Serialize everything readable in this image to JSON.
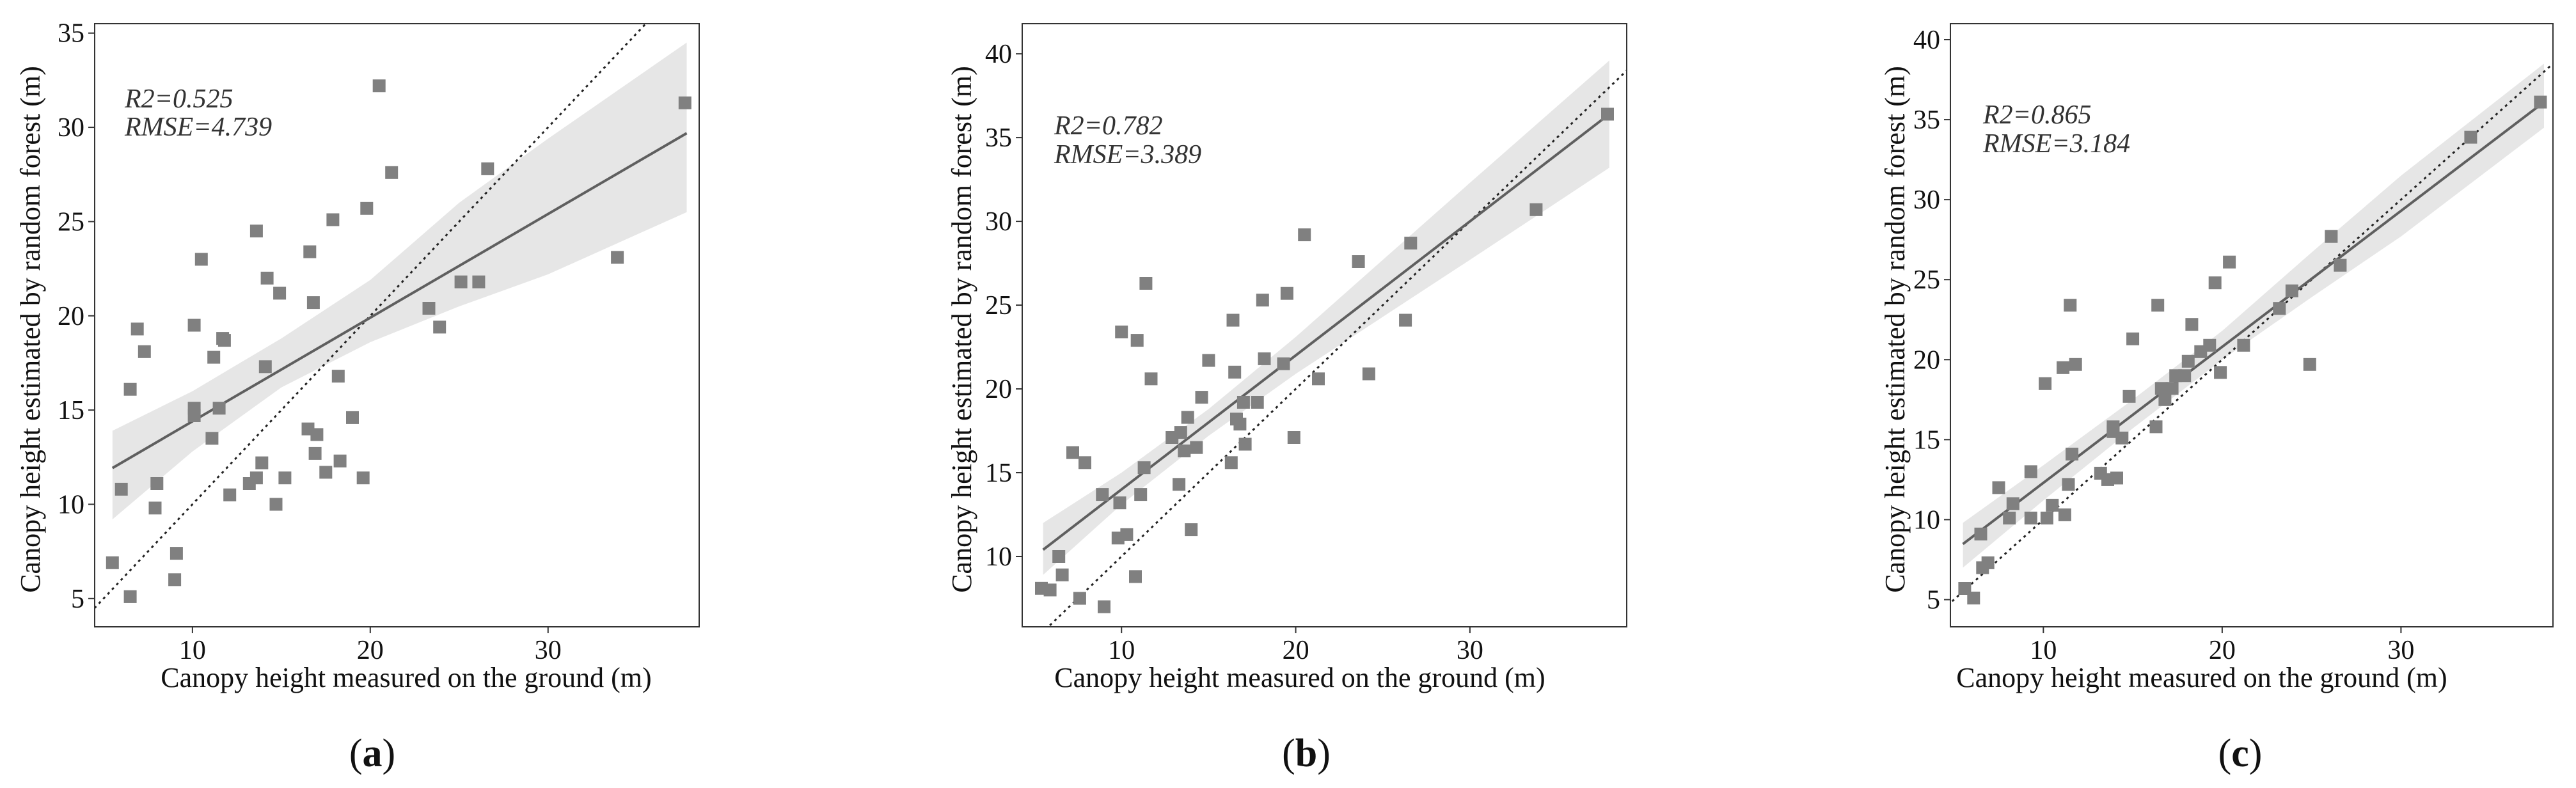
{
  "colors": {
    "point": "#808080",
    "fit_line": "#5f5f5f",
    "band": "#e6e6e6",
    "identity_line": "#222222",
    "axis": "#333333"
  },
  "chart_data": [
    {
      "type": "scatter",
      "panel_label": "(a)",
      "title": "",
      "xlabel": "Canopy height measured on the ground (m)",
      "ylabel": "Canopy height estimated by random forest (m)",
      "xlim": [
        4.5,
        38.5
      ],
      "ylim": [
        3.5,
        35.5
      ],
      "xticks": [
        10,
        20,
        30
      ],
      "yticks": [
        5,
        10,
        15,
        20,
        25,
        30,
        35
      ],
      "stats": [
        "R2=0.525",
        "RMSE=4.739"
      ],
      "fit": {
        "intercept": 8.9,
        "slope": 0.55
      },
      "band": [
        {
          "x": 5.5,
          "lo": 9.2,
          "hi": 13.9
        },
        {
          "x": 10,
          "lo": 12.8,
          "hi": 16.0
        },
        {
          "x": 15,
          "lo": 16.2,
          "hi": 18.8
        },
        {
          "x": 20,
          "lo": 18.6,
          "hi": 21.9
        },
        {
          "x": 25,
          "lo": 20.5,
          "hi": 26.0
        },
        {
          "x": 30,
          "lo": 22.2,
          "hi": 29.4
        },
        {
          "x": 37.8,
          "lo": 25.5,
          "hi": 34.5
        }
      ],
      "points": [
        {
          "x": 5.5,
          "y": 6.9
        },
        {
          "x": 6.0,
          "y": 10.8
        },
        {
          "x": 6.5,
          "y": 16.1
        },
        {
          "x": 6.9,
          "y": 19.3
        },
        {
          "x": 6.5,
          "y": 5.1
        },
        {
          "x": 7.3,
          "y": 18.1
        },
        {
          "x": 7.9,
          "y": 9.8
        },
        {
          "x": 8.0,
          "y": 11.1
        },
        {
          "x": 9.1,
          "y": 7.4
        },
        {
          "x": 9.0,
          "y": 6.0
        },
        {
          "x": 10.1,
          "y": 19.5
        },
        {
          "x": 10.1,
          "y": 15.1
        },
        {
          "x": 10.1,
          "y": 14.7
        },
        {
          "x": 10.5,
          "y": 23.0
        },
        {
          "x": 11.2,
          "y": 17.8
        },
        {
          "x": 11.1,
          "y": 13.5
        },
        {
          "x": 11.5,
          "y": 15.1
        },
        {
          "x": 11.7,
          "y": 18.8
        },
        {
          "x": 11.8,
          "y": 18.7
        },
        {
          "x": 12.1,
          "y": 10.5
        },
        {
          "x": 13.2,
          "y": 11.1
        },
        {
          "x": 13.6,
          "y": 11.4
        },
        {
          "x": 13.6,
          "y": 24.5
        },
        {
          "x": 13.9,
          "y": 12.2
        },
        {
          "x": 14.1,
          "y": 17.3
        },
        {
          "x": 14.2,
          "y": 22.0
        },
        {
          "x": 14.7,
          "y": 10.0
        },
        {
          "x": 14.9,
          "y": 21.2
        },
        {
          "x": 15.2,
          "y": 11.4
        },
        {
          "x": 16.5,
          "y": 14.0
        },
        {
          "x": 16.6,
          "y": 23.4
        },
        {
          "x": 16.8,
          "y": 20.7
        },
        {
          "x": 16.9,
          "y": 12.7
        },
        {
          "x": 17.0,
          "y": 13.7
        },
        {
          "x": 17.5,
          "y": 11.7
        },
        {
          "x": 17.9,
          "y": 25.1
        },
        {
          "x": 18.2,
          "y": 16.8
        },
        {
          "x": 18.3,
          "y": 12.3
        },
        {
          "x": 19.0,
          "y": 14.6
        },
        {
          "x": 19.6,
          "y": 11.4
        },
        {
          "x": 19.8,
          "y": 25.7
        },
        {
          "x": 20.5,
          "y": 32.2
        },
        {
          "x": 21.2,
          "y": 27.6
        },
        {
          "x": 23.3,
          "y": 20.4
        },
        {
          "x": 23.9,
          "y": 19.4
        },
        {
          "x": 25.1,
          "y": 21.8
        },
        {
          "x": 26.1,
          "y": 21.8
        },
        {
          "x": 26.6,
          "y": 27.8
        },
        {
          "x": 33.9,
          "y": 23.1
        },
        {
          "x": 37.7,
          "y": 31.3
        }
      ]
    },
    {
      "type": "scatter",
      "panel_label": "(b)",
      "title": "",
      "xlabel": "Canopy height measured on the ground (m)",
      "ylabel": "Canopy height estimated by random forest (m)",
      "xlim": [
        4.3,
        39.0
      ],
      "ylim": [
        5.8,
        41.8
      ],
      "xticks": [
        10,
        20,
        30
      ],
      "yticks": [
        10,
        15,
        20,
        25,
        30,
        35,
        40
      ],
      "stats": [
        "R2=0.782",
        "RMSE=3.389"
      ],
      "fit": {
        "intercept": 6.0,
        "slope": 0.8
      },
      "band": [
        {
          "x": 5.5,
          "lo": 8.9,
          "hi": 12.0
        },
        {
          "x": 10,
          "lo": 13.1,
          "hi": 15.0
        },
        {
          "x": 15,
          "lo": 17.2,
          "hi": 18.8
        },
        {
          "x": 20,
          "lo": 20.9,
          "hi": 23.1
        },
        {
          "x": 25,
          "lo": 24.3,
          "hi": 27.7
        },
        {
          "x": 30,
          "lo": 27.7,
          "hi": 32.3
        },
        {
          "x": 38.0,
          "lo": 33.2,
          "hi": 39.6
        }
      ],
      "points": [
        {
          "x": 5.4,
          "y": 8.1
        },
        {
          "x": 5.9,
          "y": 8.0
        },
        {
          "x": 6.4,
          "y": 10.0
        },
        {
          "x": 6.6,
          "y": 8.9
        },
        {
          "x": 7.2,
          "y": 16.2
        },
        {
          "x": 7.6,
          "y": 7.5
        },
        {
          "x": 7.9,
          "y": 15.6
        },
        {
          "x": 8.9,
          "y": 13.7
        },
        {
          "x": 9.0,
          "y": 7.0
        },
        {
          "x": 9.8,
          "y": 11.1
        },
        {
          "x": 9.9,
          "y": 13.2
        },
        {
          "x": 10.0,
          "y": 23.4
        },
        {
          "x": 10.3,
          "y": 11.3
        },
        {
          "x": 10.8,
          "y": 8.8
        },
        {
          "x": 10.9,
          "y": 22.9
        },
        {
          "x": 11.1,
          "y": 13.7
        },
        {
          "x": 11.3,
          "y": 15.3
        },
        {
          "x": 11.4,
          "y": 26.3
        },
        {
          "x": 11.7,
          "y": 20.6
        },
        {
          "x": 12.9,
          "y": 17.1
        },
        {
          "x": 13.3,
          "y": 14.3
        },
        {
          "x": 13.4,
          "y": 17.4
        },
        {
          "x": 13.6,
          "y": 16.3
        },
        {
          "x": 13.8,
          "y": 18.3
        },
        {
          "x": 14.0,
          "y": 11.6
        },
        {
          "x": 14.3,
          "y": 16.5
        },
        {
          "x": 14.6,
          "y": 19.5
        },
        {
          "x": 15.0,
          "y": 21.7
        },
        {
          "x": 16.3,
          "y": 15.6
        },
        {
          "x": 16.4,
          "y": 24.1
        },
        {
          "x": 16.5,
          "y": 21.0
        },
        {
          "x": 16.6,
          "y": 18.2
        },
        {
          "x": 16.8,
          "y": 17.9
        },
        {
          "x": 17.0,
          "y": 19.2
        },
        {
          "x": 17.1,
          "y": 16.7
        },
        {
          "x": 17.8,
          "y": 19.2
        },
        {
          "x": 18.1,
          "y": 25.3
        },
        {
          "x": 18.2,
          "y": 21.8
        },
        {
          "x": 19.3,
          "y": 21.5
        },
        {
          "x": 19.5,
          "y": 25.7
        },
        {
          "x": 19.9,
          "y": 17.1
        },
        {
          "x": 20.5,
          "y": 29.2
        },
        {
          "x": 21.3,
          "y": 20.6
        },
        {
          "x": 23.6,
          "y": 27.6
        },
        {
          "x": 24.2,
          "y": 20.9
        },
        {
          "x": 26.3,
          "y": 24.1
        },
        {
          "x": 26.6,
          "y": 28.7
        },
        {
          "x": 33.8,
          "y": 30.7
        },
        {
          "x": 37.9,
          "y": 36.4
        }
      ]
    },
    {
      "type": "scatter",
      "panel_label": "(c)",
      "title": "",
      "xlabel": "Canopy height measured on the ground (m)",
      "ylabel": "Canopy height estimated by random forest (m)",
      "xlim": [
        4.8,
        38.5
      ],
      "ylim": [
        3.3,
        41.0
      ],
      "xticks": [
        10,
        20,
        30
      ],
      "yticks": [
        5,
        10,
        15,
        20,
        25,
        30,
        35,
        40
      ],
      "stats": [
        "R2=0.865",
        "RMSE=3.184"
      ],
      "fit": {
        "intercept": 3.8,
        "slope": 0.85
      },
      "band": [
        {
          "x": 5.5,
          "lo": 7.0,
          "hi": 9.8
        },
        {
          "x": 10,
          "lo": 11.2,
          "hi": 13.4
        },
        {
          "x": 15,
          "lo": 15.7,
          "hi": 17.5
        },
        {
          "x": 20,
          "lo": 20.0,
          "hi": 21.8
        },
        {
          "x": 25,
          "lo": 23.9,
          "hi": 26.7
        },
        {
          "x": 30,
          "lo": 27.7,
          "hi": 31.5
        },
        {
          "x": 38.0,
          "lo": 34.5,
          "hi": 38.5
        }
      ],
      "points": [
        {
          "x": 5.6,
          "y": 5.7
        },
        {
          "x": 6.1,
          "y": 5.1
        },
        {
          "x": 6.5,
          "y": 9.1
        },
        {
          "x": 6.6,
          "y": 7.0
        },
        {
          "x": 6.9,
          "y": 7.3
        },
        {
          "x": 7.5,
          "y": 12.0
        },
        {
          "x": 8.1,
          "y": 10.1
        },
        {
          "x": 8.3,
          "y": 11.0
        },
        {
          "x": 9.3,
          "y": 13.0
        },
        {
          "x": 9.3,
          "y": 10.1
        },
        {
          "x": 10.1,
          "y": 18.5
        },
        {
          "x": 10.2,
          "y": 10.1
        },
        {
          "x": 10.5,
          "y": 10.9
        },
        {
          "x": 11.1,
          "y": 19.5
        },
        {
          "x": 11.2,
          "y": 10.3
        },
        {
          "x": 11.4,
          "y": 12.2
        },
        {
          "x": 11.5,
          "y": 23.4
        },
        {
          "x": 11.8,
          "y": 19.7
        },
        {
          "x": 11.6,
          "y": 14.1
        },
        {
          "x": 13.2,
          "y": 12.9
        },
        {
          "x": 13.6,
          "y": 12.5
        },
        {
          "x": 13.9,
          "y": 15.8
        },
        {
          "x": 13.9,
          "y": 15.5
        },
        {
          "x": 14.1,
          "y": 12.6
        },
        {
          "x": 14.4,
          "y": 15.1
        },
        {
          "x": 14.8,
          "y": 17.7
        },
        {
          "x": 15.0,
          "y": 21.3
        },
        {
          "x": 16.3,
          "y": 15.8
        },
        {
          "x": 16.4,
          "y": 23.4
        },
        {
          "x": 16.6,
          "y": 18.2
        },
        {
          "x": 16.8,
          "y": 17.5
        },
        {
          "x": 17.2,
          "y": 18.2
        },
        {
          "x": 17.4,
          "y": 19.0
        },
        {
          "x": 17.9,
          "y": 19.0
        },
        {
          "x": 18.1,
          "y": 19.9
        },
        {
          "x": 18.3,
          "y": 22.2
        },
        {
          "x": 18.8,
          "y": 20.5
        },
        {
          "x": 19.3,
          "y": 20.9
        },
        {
          "x": 19.6,
          "y": 24.8
        },
        {
          "x": 19.9,
          "y": 19.2
        },
        {
          "x": 20.4,
          "y": 26.1
        },
        {
          "x": 21.2,
          "y": 20.9
        },
        {
          "x": 23.2,
          "y": 23.2
        },
        {
          "x": 23.9,
          "y": 24.3
        },
        {
          "x": 24.9,
          "y": 19.7
        },
        {
          "x": 26.1,
          "y": 27.7
        },
        {
          "x": 26.6,
          "y": 25.9
        },
        {
          "x": 33.9,
          "y": 33.9
        },
        {
          "x": 37.8,
          "y": 36.1
        }
      ]
    }
  ]
}
